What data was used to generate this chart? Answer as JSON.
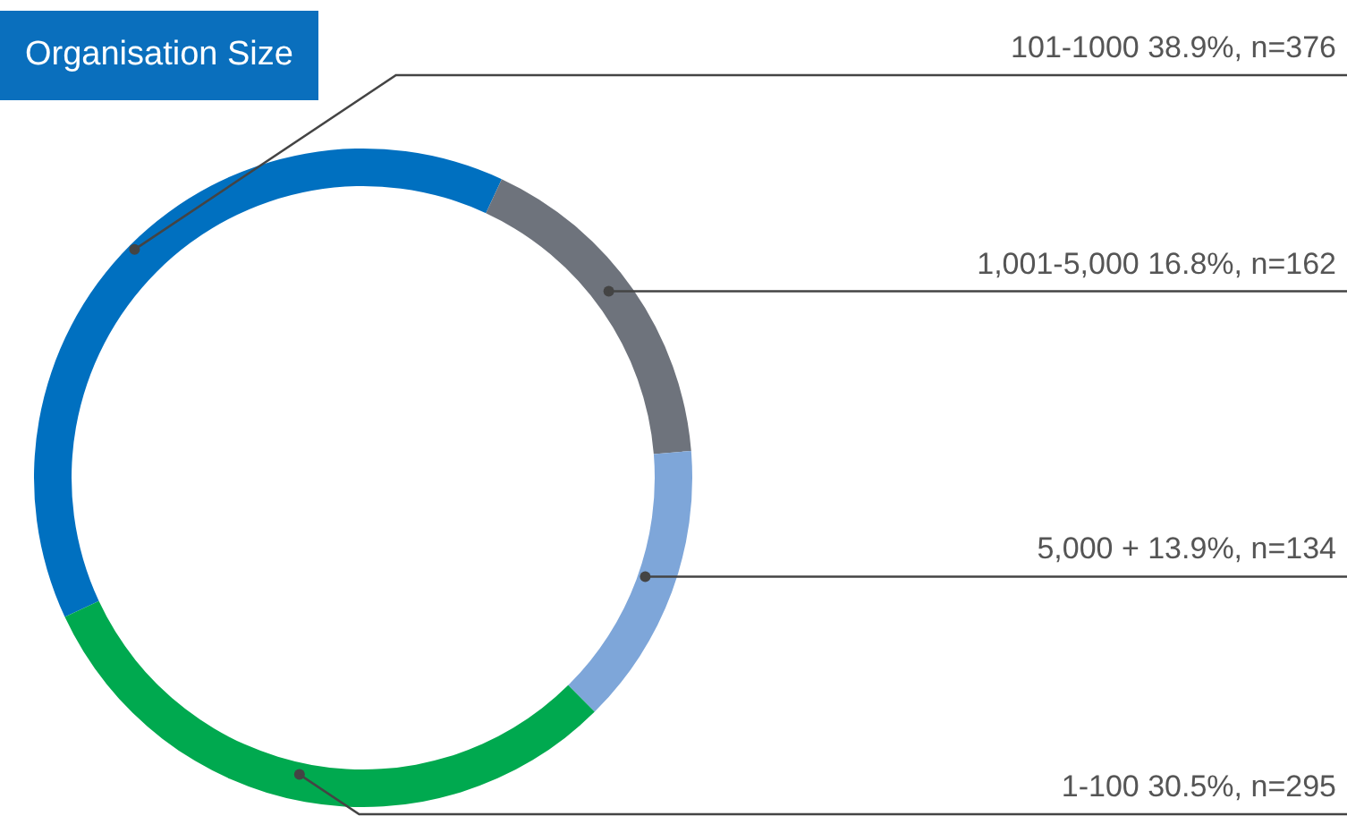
{
  "chart_data": {
    "type": "donut",
    "title": "Organisation Size",
    "categories": [
      "101-1000",
      "1,001-5,000",
      "5,000 +",
      "1-100"
    ],
    "values": [
      38.9,
      16.8,
      13.9,
      30.5
    ],
    "value_labels": [
      "38.9%, n=376",
      "16.8%, n=162",
      "13.9%, n=134",
      "30.5%, n=295"
    ],
    "colors": [
      "#0070c0",
      "#6e737c",
      "#7ea6d9",
      "#00a94f"
    ],
    "legend": false
  }
}
